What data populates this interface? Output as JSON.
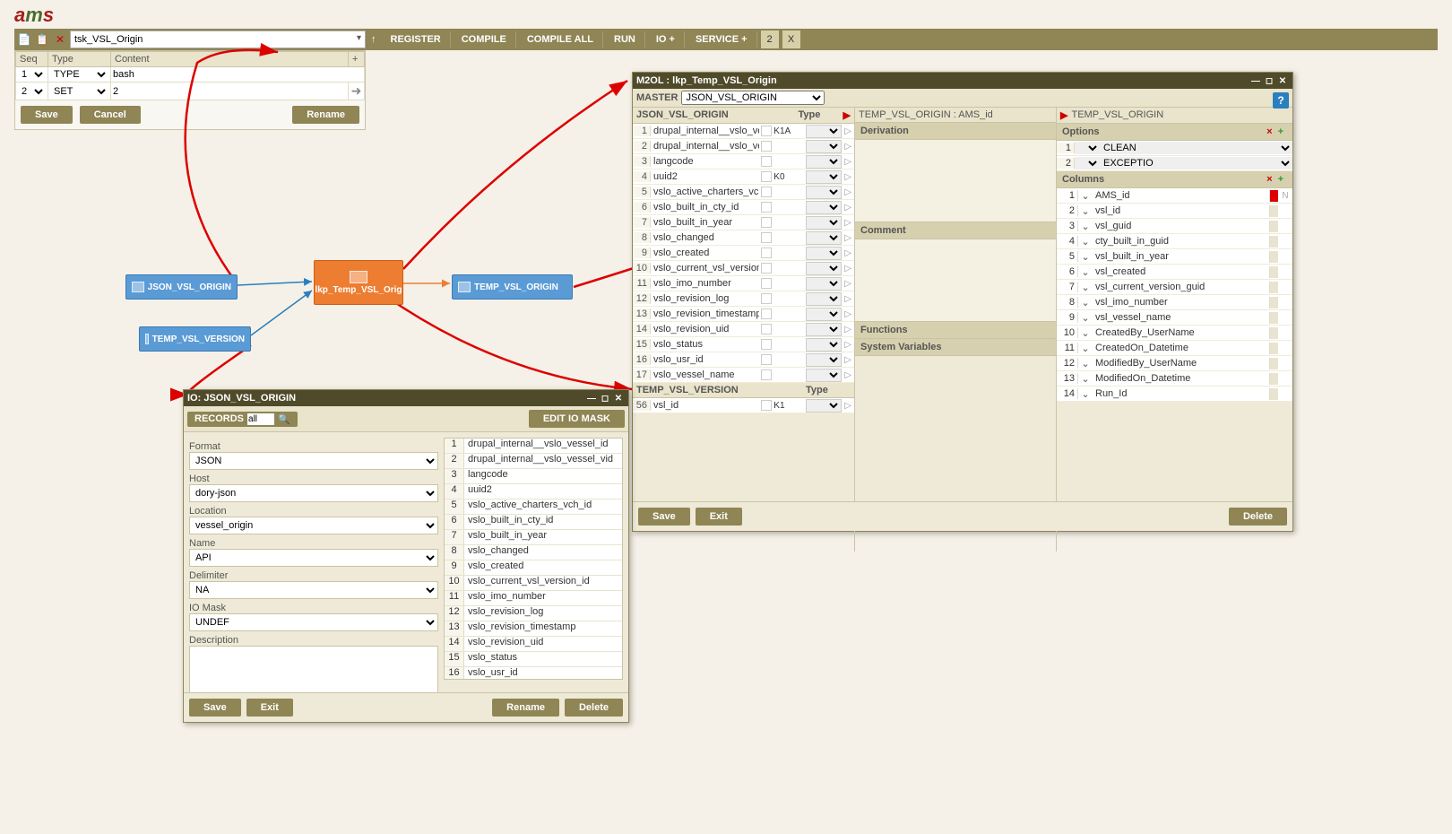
{
  "logo_text": "ams",
  "topbar": {
    "search_value": "tsk_VSL_Origin",
    "buttons": [
      "REGISTER",
      "COMPILE",
      "COMPILE ALL",
      "RUN",
      "IO +",
      "SERVICE +"
    ],
    "badge": "2",
    "x": "X"
  },
  "seq": {
    "headers": {
      "seq": "Seq",
      "type": "Type",
      "content": "Content"
    },
    "rows": [
      {
        "seq": "1",
        "type": "TYPE",
        "content": "bash"
      },
      {
        "seq": "2",
        "type": "SET",
        "content": "2"
      }
    ],
    "save": "Save",
    "cancel": "Cancel",
    "rename": "Rename"
  },
  "nodes": {
    "json": "JSON_VSL_ORIGIN",
    "lkp": "lkp_Temp_VSL_Orig",
    "temp_origin": "TEMP_VSL_ORIGIN",
    "temp_version": "TEMP_VSL_VERSION"
  },
  "m2ol": {
    "title": "M2OL : lkp_Temp_VSL_Origin",
    "master_label": "MASTER",
    "master_value": "JSON_VSL_ORIGIN",
    "left_hdr": "JSON_VSL_ORIGIN",
    "type_hdr": "Type",
    "left_rows": [
      {
        "n": "1",
        "name": "drupal_internal__vslo_vessel_id",
        "key": "K1A"
      },
      {
        "n": "2",
        "name": "drupal_internal__vslo_vessel_vid",
        "key": ""
      },
      {
        "n": "3",
        "name": "langcode",
        "key": ""
      },
      {
        "n": "4",
        "name": "uuid2",
        "key": "K0"
      },
      {
        "n": "5",
        "name": "vslo_active_charters_vch_id",
        "key": ""
      },
      {
        "n": "6",
        "name": "vslo_built_in_cty_id",
        "key": ""
      },
      {
        "n": "7",
        "name": "vslo_built_in_year",
        "key": ""
      },
      {
        "n": "8",
        "name": "vslo_changed",
        "key": ""
      },
      {
        "n": "9",
        "name": "vslo_created",
        "key": ""
      },
      {
        "n": "10",
        "name": "vslo_current_vsl_version_id",
        "key": ""
      },
      {
        "n": "11",
        "name": "vslo_imo_number",
        "key": ""
      },
      {
        "n": "12",
        "name": "vslo_revision_log",
        "key": ""
      },
      {
        "n": "13",
        "name": "vslo_revision_timestamp",
        "key": ""
      },
      {
        "n": "14",
        "name": "vslo_revision_uid",
        "key": ""
      },
      {
        "n": "15",
        "name": "vslo_status",
        "key": ""
      },
      {
        "n": "16",
        "name": "vslo_usr_id",
        "key": ""
      },
      {
        "n": "17",
        "name": "vslo_vessel_name",
        "key": ""
      }
    ],
    "left2_hdr": "TEMP_VSL_VERSION",
    "left2_rows": [
      {
        "n": "56",
        "name": "vsl_id",
        "key": "K1"
      }
    ],
    "mid": {
      "top": "TEMP_VSL_ORIGIN : AMS_id",
      "derivation": "Derivation",
      "comment": "Comment",
      "functions": "Functions",
      "sysvars": "System Variables"
    },
    "right": {
      "hdr": "TEMP_VSL_ORIGIN",
      "options_label": "Options",
      "options": [
        {
          "n": "1",
          "v": "CLEAN"
        },
        {
          "n": "2",
          "v": "EXCEPTIO"
        }
      ],
      "columns_label": "Columns",
      "columns": [
        {
          "n": "1",
          "name": "AMS_id",
          "flag": "red",
          "t": "N"
        },
        {
          "n": "2",
          "name": "vsl_id"
        },
        {
          "n": "3",
          "name": "vsl_guid"
        },
        {
          "n": "4",
          "name": "cty_built_in_guid"
        },
        {
          "n": "5",
          "name": "vsl_built_in_year"
        },
        {
          "n": "6",
          "name": "vsl_created"
        },
        {
          "n": "7",
          "name": "vsl_current_version_guid"
        },
        {
          "n": "8",
          "name": "vsl_imo_number"
        },
        {
          "n": "9",
          "name": "vsl_vessel_name"
        },
        {
          "n": "10",
          "name": "CreatedBy_UserName"
        },
        {
          "n": "11",
          "name": "CreatedOn_Datetime"
        },
        {
          "n": "12",
          "name": "ModifiedBy_UserName"
        },
        {
          "n": "13",
          "name": "ModifiedOn_Datetime"
        },
        {
          "n": "14",
          "name": "Run_Id"
        }
      ]
    },
    "save": "Save",
    "exit": "Exit",
    "delete": "Delete"
  },
  "io": {
    "title": "IO: JSON_VSL_ORIGIN",
    "records": "RECORDS",
    "records_val": "all",
    "edit_mask": "EDIT IO MASK",
    "format_l": "Format",
    "format_v": "JSON",
    "host_l": "Host",
    "host_v": "dory-json",
    "location_l": "Location",
    "location_v": "vessel_origin",
    "name_l": "Name",
    "name_v": "API",
    "delimiter_l": "Delimiter",
    "delimiter_v": "NA",
    "iomask_l": "IO Mask",
    "iomask_v": "UNDEF",
    "description_l": "Description",
    "fields": [
      {
        "n": "1",
        "t": "drupal_internal__vslo_vessel_id"
      },
      {
        "n": "2",
        "t": "drupal_internal__vslo_vessel_vid"
      },
      {
        "n": "3",
        "t": "langcode"
      },
      {
        "n": "4",
        "t": "uuid2"
      },
      {
        "n": "5",
        "t": "vslo_active_charters_vch_id"
      },
      {
        "n": "6",
        "t": "vslo_built_in_cty_id"
      },
      {
        "n": "7",
        "t": "vslo_built_in_year"
      },
      {
        "n": "8",
        "t": "vslo_changed"
      },
      {
        "n": "9",
        "t": "vslo_created"
      },
      {
        "n": "10",
        "t": "vslo_current_vsl_version_id"
      },
      {
        "n": "11",
        "t": "vslo_imo_number"
      },
      {
        "n": "12",
        "t": "vslo_revision_log"
      },
      {
        "n": "13",
        "t": "vslo_revision_timestamp"
      },
      {
        "n": "14",
        "t": "vslo_revision_uid"
      },
      {
        "n": "15",
        "t": "vslo_status"
      },
      {
        "n": "16",
        "t": "vslo_usr_id"
      }
    ],
    "save": "Save",
    "exit": "Exit",
    "rename": "Rename",
    "delete": "Delete"
  }
}
